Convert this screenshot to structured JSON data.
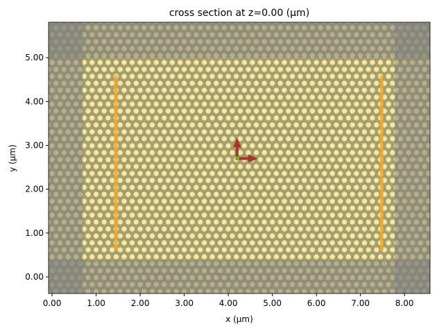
{
  "chart_data": {
    "type": "structure",
    "title": "cross section at z=0.00 (μm)",
    "xlabel": "x (μm)",
    "ylabel": "y (μm)",
    "xlim": [
      -0.08,
      8.58
    ],
    "ylim": [
      -0.38,
      5.81
    ],
    "xticks": [
      {
        "value": 0,
        "label": "0.00"
      },
      {
        "value": 1,
        "label": "1.00"
      },
      {
        "value": 2,
        "label": "2.00"
      },
      {
        "value": 3,
        "label": "3.00"
      },
      {
        "value": 4,
        "label": "4.00"
      },
      {
        "value": 5,
        "label": "5.00"
      },
      {
        "value": 6,
        "label": "6.00"
      },
      {
        "value": 7,
        "label": "7.00"
      },
      {
        "value": 8,
        "label": "8.00"
      }
    ],
    "yticks": [
      {
        "value": 0,
        "label": "0.00"
      },
      {
        "value": 1,
        "label": "1.00"
      },
      {
        "value": 2,
        "label": "2.00"
      },
      {
        "value": 3,
        "label": "3.00"
      },
      {
        "value": 4,
        "label": "4.00"
      },
      {
        "value": 5,
        "label": "5.00"
      }
    ],
    "structure": {
      "x": [
        -0.08,
        8.58
      ],
      "y": [
        -0.38,
        5.81
      ],
      "color": "#fde6a3"
    },
    "pml": [
      {
        "x": [
          -0.08,
          0.7
        ],
        "y": [
          -0.38,
          5.81
        ],
        "color": "#808080"
      },
      {
        "x": [
          7.78,
          8.58
        ],
        "y": [
          -0.38,
          5.81
        ],
        "color": "#808080"
      },
      {
        "x": [
          -0.08,
          8.58
        ],
        "y": [
          5.0,
          5.81
        ],
        "color": "#808080"
      },
      {
        "x": [
          -0.08,
          8.58
        ],
        "y": [
          -0.38,
          0.38
        ],
        "color": "#808080"
      }
    ],
    "monitors": [
      {
        "x": [
          1.41,
          1.49
        ],
        "y": [
          0.6,
          4.6
        ],
        "color": "#f2a830"
      },
      {
        "x": [
          7.44,
          7.52
        ],
        "y": [
          0.6,
          4.6
        ],
        "color": "#f2a830"
      }
    ],
    "source": {
      "x": 4.2,
      "y": 2.7,
      "color": "#a5372a"
    }
  }
}
